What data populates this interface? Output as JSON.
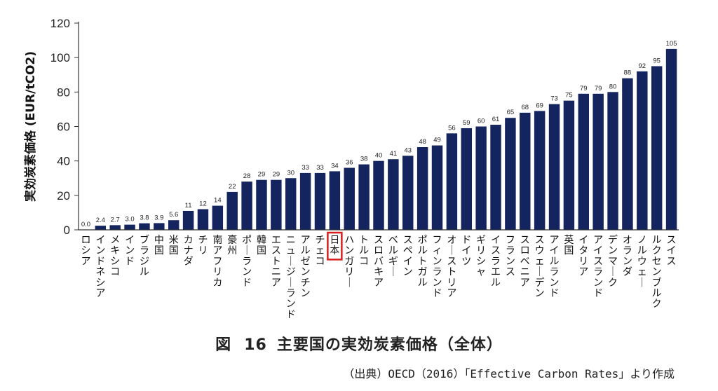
{
  "chart_data": {
    "type": "bar",
    "ylabel": "実効炭素価格 (EUR/tCO2)",
    "ylim": [
      0,
      120
    ],
    "yticks": [
      0,
      20,
      40,
      60,
      80,
      100,
      120
    ],
    "grid": false,
    "bar_color": "#14245e",
    "highlight_color": "#d81e1e",
    "highlight_category": "日本",
    "categories": [
      "ロシア",
      "インドネシア",
      "メキシコ",
      "インド",
      "ブラジル",
      "中国",
      "米国",
      "カナダ",
      "チリ",
      "南アフリカ",
      "豪州",
      "ポーランド",
      "韓国",
      "エストニア",
      "ニュージーランド",
      "アルゼンチン",
      "チェコ",
      "日本",
      "ハンガリー",
      "トルコ",
      "スロバキア",
      "ベルギー",
      "スペイン",
      "ポルトガル",
      "フィンランド",
      "オーストリア",
      "ドイツ",
      "ギリシャ",
      "イスラエル",
      "フランス",
      "スロベニア",
      "スウェーデン",
      "アイルランド",
      "英国",
      "イタリア",
      "アイスランド",
      "デンマーク",
      "オランダ",
      "ノルウェー",
      "ルクセンブルク",
      "スイス"
    ],
    "values": [
      0.0,
      2.4,
      2.7,
      3.0,
      3.8,
      3.9,
      5.6,
      11,
      12,
      14,
      22,
      28,
      29,
      29,
      30,
      33,
      33,
      34,
      36,
      38,
      40,
      41,
      43,
      48,
      49,
      56,
      59,
      60,
      61,
      65,
      68,
      69,
      73,
      75,
      79,
      79,
      80,
      88,
      92,
      95,
      105
    ],
    "value_labels": [
      "0.0",
      "2.4",
      "2.7",
      "3.0",
      "3.8",
      "3.9",
      "5.6",
      "11",
      "12",
      "14",
      "22",
      "28",
      "29",
      "29",
      "30",
      "33",
      "33",
      "34",
      "36",
      "38",
      "40",
      "41",
      "43",
      "48",
      "49",
      "56",
      "59",
      "60",
      "61",
      "65",
      "68",
      "69",
      "73",
      "75",
      "79",
      "79",
      "80",
      "88",
      "92",
      "95",
      "105"
    ]
  },
  "caption": {
    "prefix": "図",
    "number": "16",
    "title": "主要国の実効炭素価格（全体）"
  },
  "source": "（出典）OECD（2016）「Effective Carbon Rates」より作成"
}
